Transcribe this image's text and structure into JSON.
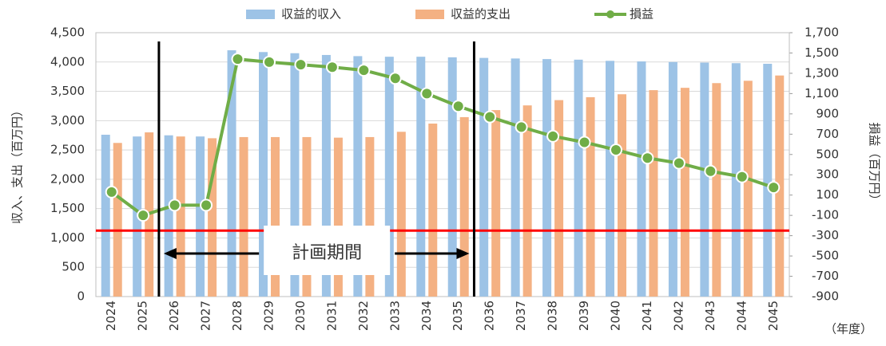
{
  "chart_data": {
    "type": "bar_line",
    "categories": [
      "2024",
      "2025",
      "2026",
      "2027",
      "2028",
      "2029",
      "2030",
      "2031",
      "2032",
      "2033",
      "2034",
      "2035",
      "2036",
      "2037",
      "2038",
      "2039",
      "2040",
      "2041",
      "2042",
      "2043",
      "2044",
      "2045"
    ],
    "series": [
      {
        "name": "収益的収入",
        "type": "bar",
        "color": "#9dc3e6",
        "values": [
          2760,
          2730,
          2750,
          2730,
          4200,
          4170,
          4150,
          4120,
          4100,
          4090,
          4090,
          4080,
          4070,
          4060,
          4050,
          4040,
          4020,
          4010,
          4000,
          3990,
          3980,
          3970
        ]
      },
      {
        "name": "収益的支出",
        "type": "bar",
        "color": "#f4b183",
        "values": [
          2620,
          2800,
          2730,
          2700,
          2720,
          2720,
          2720,
          2710,
          2720,
          2810,
          2950,
          3060,
          3180,
          3260,
          3350,
          3400,
          3450,
          3520,
          3560,
          3640,
          3680,
          3770
        ]
      },
      {
        "name": "損益",
        "type": "line",
        "axis": "y2",
        "color": "#70ad47",
        "values": [
          130,
          -100,
          0,
          0,
          1440,
          1410,
          1385,
          1360,
          1330,
          1250,
          1100,
          975,
          870,
          770,
          680,
          620,
          545,
          465,
          415,
          335,
          280,
          175
        ]
      }
    ],
    "ylabel": "収入、支出（百万円）",
    "y2label": "損益（百万円）",
    "xunit": "（年度）",
    "ylim": [
      0,
      4500
    ],
    "yticks": [
      0,
      500,
      {
        "value": 1000,
        "label": "1,000"
      },
      {
        "value": 1500,
        "label": "1,500"
      },
      {
        "value": 2000,
        "label": "2,000"
      },
      {
        "value": 2500,
        "label": "2,500"
      },
      {
        "value": 3000,
        "label": "3,000"
      },
      {
        "value": 3500,
        "label": "3,500"
      },
      {
        "value": 4000,
        "label": "4,000"
      },
      {
        "value": 4500,
        "label": "4,500"
      }
    ],
    "y2lim": [
      -900,
      1700
    ],
    "y2ticks": [
      -900,
      -700,
      -500,
      -300,
      -100,
      100,
      300,
      500,
      700,
      900,
      {
        "value": 1100,
        "label": "1,100"
      },
      {
        "value": 1300,
        "label": "1,300"
      },
      {
        "value": 1500,
        "label": "1,500"
      },
      {
        "value": 1700,
        "label": "1,700"
      }
    ],
    "y2tick_negative_color": "#ff0000",
    "reference_line": {
      "value": -250,
      "axis": "y2",
      "color": "#ff0000"
    },
    "period": {
      "label": "計画期間",
      "start": "2026",
      "end": "2035"
    },
    "grid": true,
    "legend": "top"
  }
}
